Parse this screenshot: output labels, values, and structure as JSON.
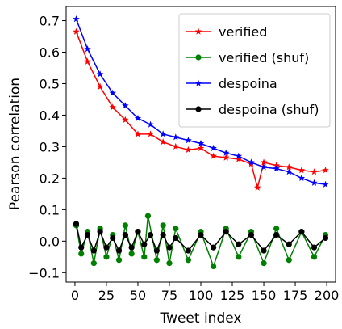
{
  "chart_data": {
    "type": "line",
    "xlabel": "Tweet index",
    "ylabel": "Pearson correlation",
    "xlim": [
      -7,
      207
    ],
    "ylim": [
      -0.13,
      0.745
    ],
    "xticks": [
      0,
      25,
      50,
      75,
      100,
      125,
      150,
      175,
      200
    ],
    "yticks": [
      -0.1,
      0.0,
      0.1,
      0.2,
      0.3,
      0.4,
      0.5,
      0.6,
      0.7
    ],
    "ytick_labels": [
      "−0.1",
      "0.0",
      "0.1",
      "0.2",
      "0.3",
      "0.4",
      "0.5",
      "0.6",
      "0.7"
    ],
    "grid": false,
    "legend_position": "top-right",
    "series": [
      {
        "name": "verified",
        "color": "#ff0000",
        "marker": "star",
        "x": [
          1,
          10,
          20,
          30,
          40,
          50,
          60,
          70,
          80,
          90,
          100,
          110,
          120,
          130,
          140,
          145,
          150,
          160,
          170,
          180,
          190,
          199
        ],
        "y": [
          0.665,
          0.57,
          0.49,
          0.425,
          0.385,
          0.34,
          0.34,
          0.315,
          0.3,
          0.29,
          0.295,
          0.27,
          0.265,
          0.26,
          0.245,
          0.17,
          0.25,
          0.24,
          0.235,
          0.225,
          0.22,
          0.225
        ]
      },
      {
        "name": "verified (shuf)",
        "color": "#008000",
        "marker": "circle",
        "x": [
          1,
          5,
          10,
          15,
          20,
          25,
          30,
          35,
          40,
          45,
          50,
          55,
          58,
          65,
          70,
          75,
          80,
          90,
          100,
          110,
          120,
          130,
          140,
          150,
          160,
          170,
          180,
          190,
          199
        ],
        "y": [
          0.05,
          -0.04,
          0.03,
          -0.07,
          0.04,
          -0.05,
          0.02,
          -0.06,
          0.05,
          -0.04,
          0.03,
          -0.05,
          0.08,
          -0.06,
          0.05,
          -0.07,
          0.04,
          -0.06,
          0.03,
          -0.08,
          0.04,
          -0.05,
          0.03,
          -0.07,
          0.04,
          -0.06,
          0.03,
          -0.05,
          0.02
        ]
      },
      {
        "name": "despoina",
        "color": "#0000ff",
        "marker": "star",
        "x": [
          1,
          10,
          20,
          30,
          40,
          50,
          60,
          70,
          80,
          90,
          100,
          110,
          120,
          130,
          140,
          150,
          160,
          170,
          180,
          190,
          199
        ],
        "y": [
          0.705,
          0.61,
          0.53,
          0.47,
          0.43,
          0.39,
          0.37,
          0.34,
          0.33,
          0.32,
          0.31,
          0.295,
          0.28,
          0.27,
          0.25,
          0.235,
          0.23,
          0.22,
          0.2,
          0.185,
          0.18
        ]
      },
      {
        "name": "despoina (shuf)",
        "color": "#000000",
        "marker": "circle",
        "x": [
          1,
          5,
          10,
          15,
          20,
          25,
          30,
          35,
          40,
          45,
          50,
          55,
          60,
          65,
          70,
          75,
          80,
          90,
          100,
          110,
          120,
          130,
          140,
          150,
          160,
          170,
          180,
          190,
          199
        ],
        "y": [
          0.055,
          -0.02,
          0.02,
          -0.03,
          0.03,
          -0.02,
          0.01,
          -0.03,
          0.02,
          -0.02,
          0.03,
          -0.01,
          0.02,
          -0.03,
          0.02,
          -0.02,
          0.01,
          -0.03,
          0.02,
          -0.02,
          0.03,
          -0.01,
          0.02,
          -0.03,
          0.02,
          -0.01,
          0.03,
          -0.02,
          0.01
        ]
      }
    ]
  }
}
